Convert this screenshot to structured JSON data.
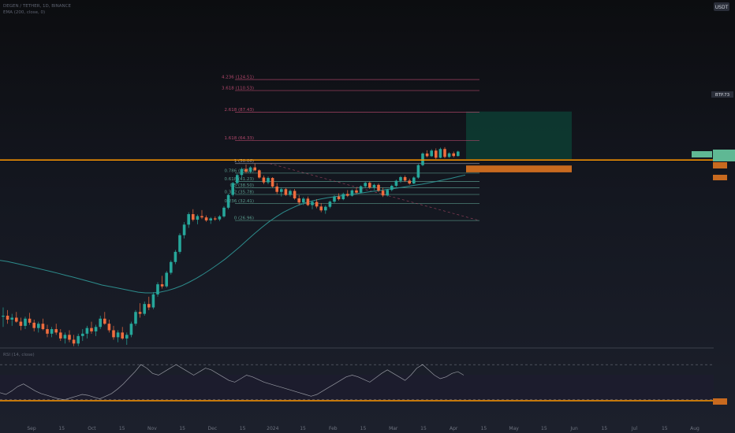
{
  "header": {
    "symbol_line": "DEGEN / TETHER, 1D, BINANCE",
    "indicator_line": "EMA (200, close, 0)",
    "currency": "USDT"
  },
  "rsi": {
    "title": "RSI (14, close)",
    "upper_band": 70,
    "lower_band": 30,
    "values": [
      38,
      36,
      40,
      45,
      48,
      44,
      40,
      37,
      35,
      33,
      31,
      30,
      32,
      34,
      36,
      35,
      33,
      31,
      34,
      37,
      42,
      48,
      55,
      62,
      70,
      66,
      60,
      58,
      62,
      66,
      70,
      66,
      62,
      58,
      62,
      66,
      64,
      60,
      56,
      52,
      50,
      54,
      58,
      56,
      53,
      50,
      48,
      46,
      44,
      42,
      40,
      38,
      36,
      34,
      36,
      40,
      44,
      48,
      52,
      56,
      58,
      56,
      53,
      50,
      55,
      60,
      64,
      60,
      56,
      52,
      58,
      66,
      70,
      64,
      58,
      54,
      56,
      60,
      62,
      58
    ]
  },
  "colors": {
    "up": "#26a69a",
    "down": "#ef6c3e",
    "ema": "#2d8c8c",
    "fib_line": "#6b4a58",
    "horizontal_level": "#ff9800",
    "tp_zone": "#0d3b32",
    "sl_zone": "#c86a1f",
    "rsi_line": "#9598a1"
  },
  "axis": {
    "x_ticks": [
      "Sep",
      "15",
      "Oct",
      "15",
      "Nov",
      "15",
      "Dec",
      "15",
      "2024",
      "15",
      "Feb",
      "15",
      "Mar",
      "15",
      "Apr",
      "15",
      "May",
      "15",
      "Jun",
      "15",
      "Jul",
      "15",
      "Aug"
    ],
    "current_price_label": "BTP.73"
  },
  "chart_data": {
    "type": "candlestick",
    "title": "",
    "xlabel": "",
    "ylabel": "",
    "horizontal_level": 52.0,
    "ema_200": [
      17.5,
      17.3,
      17.0,
      16.7,
      16.4,
      16.1,
      15.8,
      15.5,
      15.2,
      14.9,
      14.6,
      14.3,
      14.0,
      13.7,
      13.4,
      13.2,
      13.0,
      12.8,
      12.6,
      12.4,
      12.3,
      12.3,
      12.4,
      12.6,
      12.9,
      13.3,
      13.8,
      14.4,
      15.1,
      15.9,
      16.8,
      17.8,
      19.0,
      20.3,
      21.8,
      23.4,
      25.0,
      26.6,
      28.1,
      29.5,
      30.7,
      31.8,
      32.7,
      33.4,
      34.0,
      34.5,
      34.9,
      35.3,
      35.7,
      36.1,
      36.5,
      36.9,
      37.3,
      37.7,
      38.1,
      38.5,
      39.0,
      39.5,
      40.0,
      40.6,
      41.2,
      41.9,
      42.6,
      43.4,
      44.2
    ],
    "fib_levels": [
      {
        "label": "4.236 (124.51)",
        "value": 124.51
      },
      {
        "label": "3.618 (110.53)",
        "value": 110.53
      },
      {
        "label": "2.618 (87.43)",
        "value": 87.43
      },
      {
        "label": "1.618 (64.33)",
        "value": 64.33
      },
      {
        "label": "1 (50.06)",
        "value": 50.06
      },
      {
        "label": "0.786 (45.11)",
        "value": 45.11
      },
      {
        "label": "0.618 (41.23)",
        "value": 41.23
      },
      {
        "label": "0.5 (38.50)",
        "value": 38.5
      },
      {
        "label": "0.382 (35.78)",
        "value": 35.78
      },
      {
        "label": "0.236 (32.41)",
        "value": 32.41
      },
      {
        "label": "0 (26.96)",
        "value": 26.96
      }
    ],
    "target_zone": [
      52.5,
      88.0
    ],
    "stop_zone": [
      45.5,
      49.0
    ],
    "candles": [
      [
        9.5,
        10.5,
        8.5,
        9.6
      ],
      [
        9.6,
        10.2,
        8.8,
        9.2
      ],
      [
        9.2,
        9.8,
        8.6,
        9.4
      ],
      [
        9.4,
        10.0,
        8.9,
        9.0
      ],
      [
        9.0,
        9.4,
        8.2,
        8.6
      ],
      [
        8.6,
        9.5,
        8.3,
        9.3
      ],
      [
        9.3,
        9.9,
        8.7,
        8.9
      ],
      [
        8.9,
        9.2,
        8.1,
        8.4
      ],
      [
        8.4,
        9.0,
        8.0,
        8.8
      ],
      [
        8.8,
        9.3,
        8.2,
        8.3
      ],
      [
        8.3,
        8.7,
        7.6,
        7.9
      ],
      [
        7.9,
        8.5,
        7.6,
        8.3
      ],
      [
        8.3,
        8.8,
        7.8,
        8.0
      ],
      [
        8.0,
        8.3,
        7.3,
        7.5
      ],
      [
        7.5,
        8.0,
        7.1,
        7.8
      ],
      [
        7.8,
        8.2,
        7.2,
        7.4
      ],
      [
        7.4,
        7.8,
        6.9,
        7.1
      ],
      [
        7.1,
        7.9,
        6.9,
        7.7
      ],
      [
        7.7,
        8.3,
        7.3,
        7.9
      ],
      [
        7.9,
        8.6,
        7.5,
        8.4
      ],
      [
        8.4,
        9.0,
        7.9,
        8.1
      ],
      [
        8.1,
        8.7,
        7.7,
        8.5
      ],
      [
        8.5,
        9.6,
        8.3,
        9.3
      ],
      [
        9.3,
        10.0,
        8.7,
        8.8
      ],
      [
        8.8,
        9.2,
        8.0,
        8.2
      ],
      [
        8.2,
        8.6,
        7.4,
        7.6
      ],
      [
        7.6,
        8.2,
        7.2,
        8.0
      ],
      [
        8.0,
        8.5,
        7.4,
        7.5
      ],
      [
        7.5,
        8.0,
        7.0,
        7.8
      ],
      [
        7.8,
        9.0,
        7.6,
        8.8
      ],
      [
        8.8,
        10.2,
        8.6,
        10.0
      ],
      [
        10.0,
        11.0,
        9.4,
        9.8
      ],
      [
        9.8,
        11.2,
        9.6,
        10.9
      ],
      [
        10.9,
        11.8,
        10.2,
        10.5
      ],
      [
        10.5,
        12.4,
        10.3,
        12.1
      ],
      [
        12.1,
        13.8,
        11.8,
        13.5
      ],
      [
        13.5,
        14.8,
        12.9,
        13.2
      ],
      [
        13.2,
        15.6,
        13.0,
        15.3
      ],
      [
        15.3,
        17.5,
        15.0,
        17.2
      ],
      [
        17.2,
        19.6,
        16.8,
        19.2
      ],
      [
        19.2,
        23.5,
        18.8,
        23.0
      ],
      [
        23.0,
        26.5,
        22.2,
        25.8
      ],
      [
        25.8,
        29.5,
        24.9,
        28.9
      ],
      [
        28.9,
        30.5,
        26.7,
        27.2
      ],
      [
        27.2,
        28.8,
        25.9,
        28.3
      ],
      [
        28.3,
        30.2,
        27.4,
        27.9
      ],
      [
        27.9,
        28.5,
        26.6,
        27.0
      ],
      [
        27.0,
        28.0,
        26.0,
        27.6
      ],
      [
        27.6,
        28.2,
        26.9,
        27.3
      ],
      [
        27.3,
        28.6,
        26.8,
        28.2
      ],
      [
        28.2,
        31.5,
        27.8,
        31.0
      ],
      [
        31.0,
        36.0,
        30.5,
        35.6
      ],
      [
        35.6,
        41.0,
        35.0,
        40.5
      ],
      [
        40.5,
        44.8,
        39.8,
        44.2
      ],
      [
        44.2,
        48.0,
        43.0,
        47.2
      ],
      [
        47.2,
        49.5,
        45.1,
        45.8
      ],
      [
        45.8,
        48.6,
        45.0,
        48.0
      ],
      [
        48.0,
        50.1,
        46.0,
        46.5
      ],
      [
        46.5,
        47.0,
        42.5,
        43.0
      ],
      [
        43.0,
        44.0,
        40.0,
        40.8
      ],
      [
        40.8,
        43.5,
        40.0,
        42.8
      ],
      [
        42.8,
        43.2,
        38.5,
        39.0
      ],
      [
        39.0,
        40.5,
        36.0,
        36.8
      ],
      [
        36.8,
        38.5,
        35.0,
        37.9
      ],
      [
        37.9,
        38.4,
        35.2,
        35.6
      ],
      [
        35.6,
        37.8,
        35.0,
        37.2
      ],
      [
        37.2,
        38.0,
        33.8,
        34.3
      ],
      [
        34.3,
        35.5,
        32.0,
        32.8
      ],
      [
        32.8,
        34.8,
        31.9,
        34.2
      ],
      [
        34.2,
        35.0,
        31.5,
        31.9
      ],
      [
        31.9,
        33.5,
        30.5,
        33.0
      ],
      [
        33.0,
        34.0,
        30.8,
        31.4
      ],
      [
        31.4,
        32.6,
        29.5,
        30.1
      ],
      [
        30.1,
        31.8,
        29.0,
        31.3
      ],
      [
        31.3,
        33.5,
        30.8,
        33.1
      ],
      [
        33.1,
        35.5,
        32.6,
        35.0
      ],
      [
        35.0,
        36.2,
        33.5,
        34.0
      ],
      [
        34.0,
        36.5,
        33.6,
        36.0
      ],
      [
        36.0,
        37.5,
        34.8,
        35.3
      ],
      [
        35.3,
        37.8,
        35.0,
        37.4
      ],
      [
        37.4,
        38.6,
        36.0,
        36.5
      ],
      [
        36.5,
        39.5,
        36.2,
        39.1
      ],
      [
        39.1,
        41.0,
        38.3,
        40.6
      ],
      [
        40.6,
        41.2,
        38.0,
        38.6
      ],
      [
        38.6,
        40.2,
        37.5,
        39.7
      ],
      [
        39.7,
        40.3,
        36.8,
        37.3
      ],
      [
        37.3,
        38.5,
        34.8,
        35.4
      ],
      [
        35.4,
        38.0,
        35.0,
        37.6
      ],
      [
        37.6,
        39.8,
        37.0,
        39.3
      ],
      [
        39.3,
        42.0,
        38.8,
        41.5
      ],
      [
        41.5,
        43.8,
        40.6,
        43.2
      ],
      [
        43.2,
        44.0,
        41.0,
        41.6
      ],
      [
        41.6,
        42.5,
        39.8,
        40.3
      ],
      [
        40.3,
        43.5,
        40.0,
        43.0
      ],
      [
        43.0,
        49.8,
        42.5,
        49.2
      ],
      [
        49.2,
        56.5,
        48.6,
        55.8
      ],
      [
        55.8,
        57.8,
        53.5,
        54.2
      ],
      [
        54.2,
        58.5,
        53.8,
        57.6
      ],
      [
        57.6,
        59.0,
        52.5,
        53.3
      ],
      [
        53.3,
        59.5,
        53.0,
        58.6
      ],
      [
        58.6,
        59.8,
        53.0,
        53.8
      ],
      [
        53.8,
        56.5,
        53.2,
        55.9
      ],
      [
        55.9,
        57.0,
        53.5,
        54.3
      ],
      [
        54.3,
        57.5,
        54.0,
        57.0
      ]
    ]
  }
}
